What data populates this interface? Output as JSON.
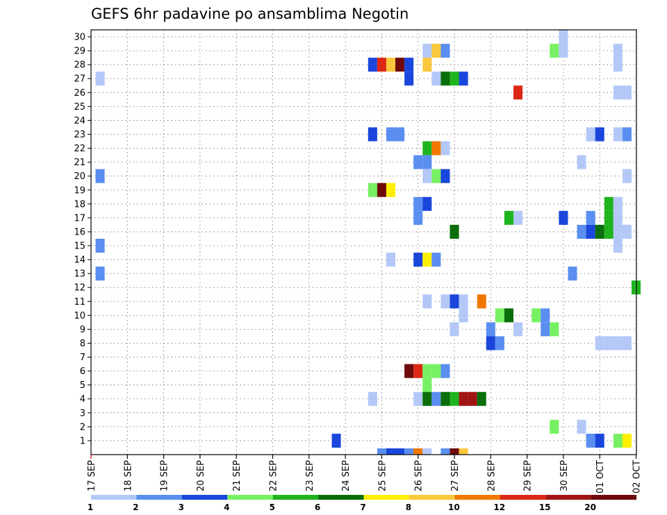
{
  "chart_data": {
    "type": "heatmap",
    "title": "GEFS 6hr padavine po ansamblima Negotin",
    "xlabel": "",
    "ylabel": "",
    "x_ticks": [
      "17 SEP",
      "18 SEP",
      "19 SEP",
      "20 SEP",
      "21 SEP",
      "22 SEP",
      "23 SEP",
      "24 SEP",
      "25 SEP",
      "26 SEP",
      "27 SEP",
      "28 SEP",
      "29 SEP",
      "30 SEP",
      "01 OCT",
      "02 OCT"
    ],
    "y_ticks": [
      "1",
      "2",
      "3",
      "4",
      "5",
      "6",
      "7",
      "8",
      "9",
      "10",
      "11",
      "12",
      "13",
      "14",
      "15",
      "16",
      "17",
      "18",
      "19",
      "20",
      "21",
      "22",
      "23",
      "24",
      "25",
      "26",
      "27",
      "28",
      "29",
      "30"
    ],
    "xlim_days": [
      0,
      15
    ],
    "ylim": [
      0,
      30
    ],
    "grid": true,
    "legend": {
      "placement": "bottom",
      "labels": [
        "1",
        "2",
        "3",
        "4",
        "5",
        "6",
        "7",
        "8",
        "10",
        "12",
        "15",
        "20"
      ],
      "colors": [
        "#b4c8f8",
        "#5a8ef0",
        "#1a46dc",
        "#78f064",
        "#1eb41e",
        "#0a6e0a",
        "#fff000",
        "#fac83c",
        "#f07800",
        "#dc2814",
        "#a01414",
        "#6e0a0a"
      ]
    },
    "cells_note": "each cell: [day offset from 17 SEP, member row, color class 0-11]",
    "cells": [
      [
        0.25,
        27,
        0
      ],
      [
        0.25,
        20,
        1
      ],
      [
        0.25,
        15,
        1
      ],
      [
        0.25,
        13,
        1
      ],
      [
        6.75,
        1,
        2
      ],
      [
        7.75,
        28,
        2
      ],
      [
        8.0,
        28,
        9
      ],
      [
        8.25,
        28,
        7
      ],
      [
        8.5,
        28,
        11
      ],
      [
        8.75,
        28,
        2
      ],
      [
        8.75,
        27,
        2
      ],
      [
        7.75,
        23,
        2
      ],
      [
        8.25,
        23,
        1
      ],
      [
        8.5,
        23,
        1
      ],
      [
        7.75,
        19,
        3
      ],
      [
        8.0,
        19,
        11
      ],
      [
        8.25,
        19,
        6
      ],
      [
        7.75,
        4,
        0
      ],
      [
        8.25,
        14,
        0
      ],
      [
        8.75,
        6,
        11
      ],
      [
        9.0,
        6,
        9
      ],
      [
        9.25,
        6,
        3
      ],
      [
        9.5,
        6,
        3
      ],
      [
        9.75,
        6,
        1
      ],
      [
        9.25,
        5,
        3
      ],
      [
        9.0,
        4,
        0
      ],
      [
        9.25,
        4,
        5
      ],
      [
        9.5,
        4,
        1
      ],
      [
        9.75,
        4,
        5
      ],
      [
        10.0,
        4,
        4
      ],
      [
        10.25,
        4,
        10
      ],
      [
        10.5,
        4,
        10
      ],
      [
        10.75,
        4,
        5
      ],
      [
        9.25,
        29,
        0
      ],
      [
        9.5,
        29,
        7
      ],
      [
        9.75,
        29,
        1
      ],
      [
        9.25,
        28,
        7
      ],
      [
        9.5,
        27,
        0
      ],
      [
        9.75,
        27,
        5
      ],
      [
        10.0,
        27,
        4
      ],
      [
        10.25,
        27,
        2
      ],
      [
        9.25,
        22,
        4
      ],
      [
        9.5,
        22,
        8
      ],
      [
        9.75,
        22,
        0
      ],
      [
        9.0,
        21,
        1
      ],
      [
        9.25,
        21,
        1
      ],
      [
        9.25,
        20,
        0
      ],
      [
        9.5,
        20,
        3
      ],
      [
        9.75,
        20,
        2
      ],
      [
        9.0,
        18,
        1
      ],
      [
        9.25,
        18,
        2
      ],
      [
        9.0,
        17,
        1
      ],
      [
        10.0,
        16,
        5
      ],
      [
        9.0,
        14,
        2
      ],
      [
        9.25,
        14,
        6
      ],
      [
        9.5,
        14,
        1
      ],
      [
        9.25,
        11,
        0
      ],
      [
        9.75,
        11,
        0
      ],
      [
        10.0,
        11,
        2
      ],
      [
        10.25,
        11,
        0
      ],
      [
        10.25,
        10,
        0
      ],
      [
        10.0,
        9,
        0
      ],
      [
        10.75,
        11,
        8
      ],
      [
        11.0,
        9,
        1
      ],
      [
        11.0,
        8,
        2
      ],
      [
        11.25,
        8,
        1
      ],
      [
        11.25,
        10,
        3
      ],
      [
        11.5,
        10,
        5
      ],
      [
        11.75,
        9,
        0
      ],
      [
        12.25,
        10,
        3
      ],
      [
        12.5,
        10,
        1
      ],
      [
        12.5,
        9,
        1
      ],
      [
        12.75,
        9,
        3
      ],
      [
        12.75,
        2,
        3
      ],
      [
        11.75,
        26,
        9
      ],
      [
        11.5,
        17,
        4
      ],
      [
        11.75,
        17,
        0
      ],
      [
        13.0,
        30,
        0
      ],
      [
        12.75,
        29,
        3
      ],
      [
        13.0,
        29,
        0
      ],
      [
        13.0,
        17,
        2
      ],
      [
        13.25,
        13,
        1
      ],
      [
        13.5,
        21,
        0
      ],
      [
        13.5,
        2,
        0
      ],
      [
        13.5,
        16,
        1
      ],
      [
        13.75,
        16,
        2
      ],
      [
        13.75,
        17,
        1
      ],
      [
        14.0,
        16,
        5
      ],
      [
        14.25,
        16,
        4
      ],
      [
        14.25,
        17,
        4
      ],
      [
        14.5,
        17,
        0
      ],
      [
        14.5,
        16,
        0
      ],
      [
        14.75,
        16,
        0
      ],
      [
        14.25,
        18,
        4
      ],
      [
        14.5,
        18,
        0
      ],
      [
        14.5,
        15,
        0
      ],
      [
        14.5,
        29,
        0
      ],
      [
        14.5,
        28,
        0
      ],
      [
        14.5,
        26,
        0
      ],
      [
        14.75,
        26,
        0
      ],
      [
        13.75,
        23,
        0
      ],
      [
        14.0,
        23,
        2
      ],
      [
        14.5,
        23,
        0
      ],
      [
        14.75,
        23,
        1
      ],
      [
        14.75,
        20,
        0
      ],
      [
        14.0,
        8,
        0
      ],
      [
        14.25,
        8,
        0
      ],
      [
        14.5,
        8,
        0
      ],
      [
        14.75,
        8,
        0
      ],
      [
        13.75,
        1,
        1
      ],
      [
        14.0,
        1,
        2
      ],
      [
        14.5,
        1,
        3
      ],
      [
        14.75,
        1,
        6
      ],
      [
        15.0,
        12,
        4
      ]
    ],
    "strip_note": "row of cells shown just below member 1 line",
    "strip": [
      [
        8.0,
        1
      ],
      [
        8.25,
        2
      ],
      [
        8.5,
        2
      ],
      [
        8.75,
        1
      ],
      [
        9.0,
        8
      ],
      [
        9.25,
        0
      ],
      [
        9.75,
        1
      ],
      [
        10.0,
        11
      ],
      [
        10.25,
        7
      ]
    ]
  }
}
